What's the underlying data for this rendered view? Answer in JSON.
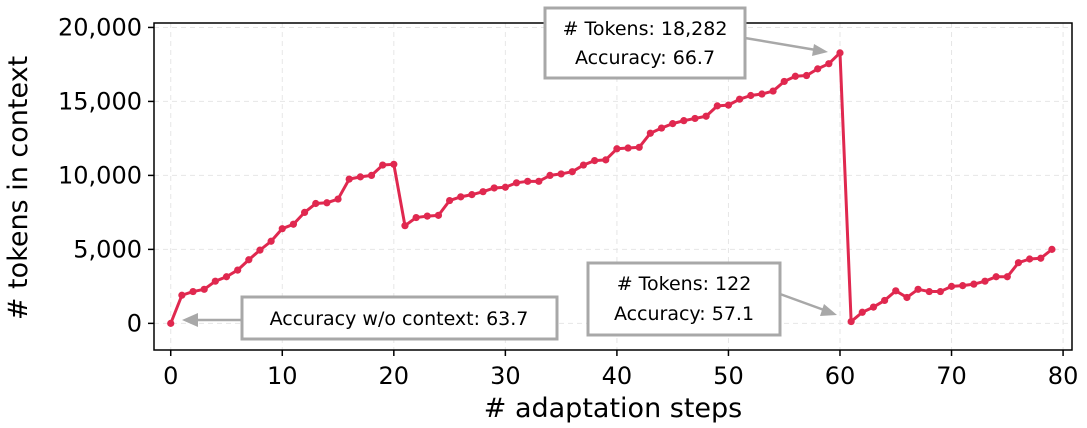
{
  "chart_data": {
    "type": "line",
    "xlabel": "# adaptation steps",
    "ylabel": "# tokens in context",
    "xlim": [
      -1.5,
      80.8
    ],
    "ylim": [
      -1800,
      20300
    ],
    "xticks": [
      0,
      10,
      20,
      30,
      40,
      50,
      60,
      70,
      80
    ],
    "yticks": [
      0,
      5000,
      10000,
      15000,
      20000
    ],
    "xtick_labels": [
      "0",
      "10",
      "20",
      "30",
      "40",
      "50",
      "60",
      "70",
      "80"
    ],
    "ytick_labels": [
      "0",
      "5,000",
      "10,000",
      "15,000",
      "20,000"
    ],
    "grid": true,
    "line_color": "#e0284f",
    "annotation_color": "#a8a8a8",
    "series": [
      {
        "x": [
          0,
          1,
          2,
          3,
          4,
          5,
          6,
          7,
          8,
          9,
          10,
          11,
          12,
          13,
          14,
          15,
          16,
          17,
          18,
          19,
          20,
          21,
          22,
          23,
          24,
          25,
          26,
          27,
          28,
          29,
          30,
          31,
          32,
          33,
          34,
          35,
          36,
          37,
          38,
          39,
          40,
          41,
          42,
          43,
          44,
          45,
          46,
          47,
          48,
          49,
          50,
          51,
          52,
          53,
          54,
          55,
          56,
          57,
          58,
          59,
          60,
          61,
          62,
          63,
          64,
          65,
          66,
          67,
          68,
          69,
          70,
          71,
          72,
          73,
          74,
          75,
          76,
          77,
          78,
          79
        ],
        "y": [
          0,
          1900,
          2150,
          2300,
          2850,
          3150,
          3600,
          4300,
          4950,
          5550,
          6400,
          6700,
          7500,
          8100,
          8150,
          8400,
          9750,
          9900,
          10000,
          10700,
          10750,
          6600,
          7150,
          7250,
          7300,
          8300,
          8550,
          8700,
          8900,
          9150,
          9200,
          9500,
          9600,
          9600,
          10000,
          10100,
          10250,
          10700,
          11000,
          11050,
          11800,
          11850,
          11900,
          12850,
          13200,
          13500,
          13700,
          13850,
          14000,
          14700,
          14750,
          15150,
          15400,
          15500,
          15700,
          16350,
          16700,
          16750,
          17200,
          17550,
          18282,
          122,
          750,
          1100,
          1550,
          2200,
          1750,
          2300,
          2150,
          2150,
          2500,
          2550,
          2650,
          2850,
          3150,
          3150,
          4100,
          4350,
          4400,
          5000
        ]
      }
    ],
    "annotations": [
      {
        "text": [
          "# Tokens: 18,282",
          "Accuracy: 66.7"
        ],
        "point": [
          60,
          18282
        ]
      },
      {
        "text": [
          "Accuracy w/o context: 63.7"
        ],
        "point": [
          0,
          0
        ]
      },
      {
        "text": [
          "# Tokens: 122",
          "Accuracy: 57.1"
        ],
        "point": [
          61,
          122
        ]
      }
    ]
  }
}
